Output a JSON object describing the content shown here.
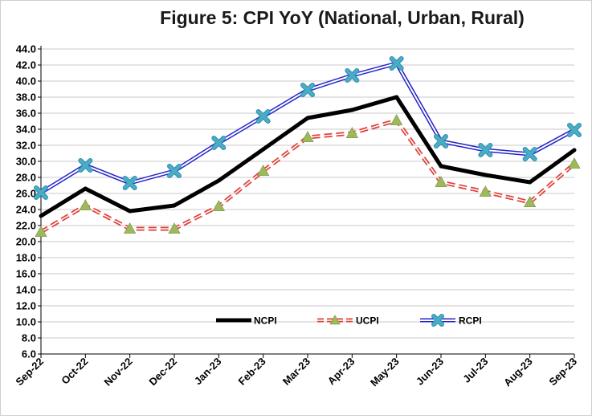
{
  "chart_data": {
    "type": "line",
    "title": "Figure 5: CPI YoY (National, Urban, Rural)",
    "xlabel": "",
    "ylabel": "",
    "ylim": [
      6.0,
      44.0
    ],
    "ytick_step": 2.0,
    "grid": true,
    "legend_position": "bottom-center",
    "categories": [
      "Sep-22",
      "Oct-22",
      "Nov-22",
      "Dec-22",
      "Jan-23",
      "Feb-23",
      "Mar-23",
      "Apr-23",
      "May-23",
      "Jun-23",
      "Jul-23",
      "Aug-23",
      "Sep-23"
    ],
    "series": [
      {
        "name": "NCPI",
        "color": "#000000",
        "values": [
          23.2,
          26.6,
          23.8,
          24.5,
          27.6,
          31.5,
          35.4,
          36.4,
          38.0,
          29.4,
          28.3,
          27.4,
          31.4
        ]
      },
      {
        "name": "UCPI",
        "color": "#e0403a",
        "marker_color": "#9bbb59",
        "values": [
          21.2,
          24.5,
          21.6,
          21.6,
          24.4,
          28.8,
          33.0,
          33.5,
          35.1,
          27.4,
          26.2,
          24.9,
          29.7
        ]
      },
      {
        "name": "RCPI",
        "color": "#2424c8",
        "marker_color": "#4bacc6",
        "values": [
          26.1,
          29.5,
          27.3,
          28.8,
          32.3,
          35.6,
          38.9,
          40.7,
          42.2,
          32.5,
          31.4,
          30.9,
          33.9
        ]
      }
    ]
  }
}
